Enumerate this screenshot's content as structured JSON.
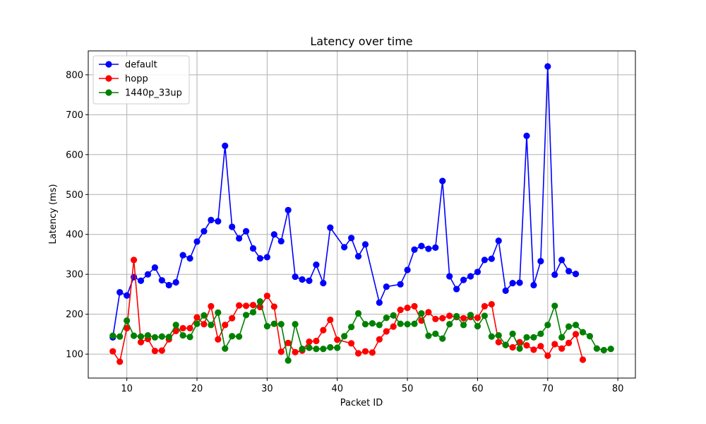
{
  "chart_data": {
    "type": "line",
    "title": "Latency over time",
    "xlabel": "Packet ID",
    "ylabel": "Latency (ms)",
    "xlim": [
      4.5,
      82.5
    ],
    "ylim": [
      40,
      860
    ],
    "xticks": [
      10,
      20,
      30,
      40,
      50,
      60,
      70,
      80
    ],
    "yticks": [
      100,
      200,
      300,
      400,
      500,
      600,
      700,
      800
    ],
    "grid": true,
    "legend_position": "top-left",
    "series": [
      {
        "name": "default",
        "color": "#0000ff",
        "x": [
          8,
          9,
          10,
          11,
          12,
          13,
          14,
          15,
          16,
          17,
          18,
          19,
          20,
          21,
          22,
          23,
          24,
          25,
          26,
          27,
          28,
          29,
          30,
          31,
          32,
          33,
          34,
          35,
          36,
          37,
          38,
          39,
          41,
          42,
          43,
          44,
          46,
          47,
          49,
          50,
          51,
          52,
          53,
          54,
          55,
          56,
          57,
          58,
          59,
          60,
          61,
          62,
          63,
          64,
          65,
          66,
          67,
          68,
          69,
          70,
          71,
          72,
          73,
          74
        ],
        "y": [
          142,
          255,
          247,
          293,
          284,
          300,
          317,
          285,
          273,
          280,
          348,
          340,
          382,
          408,
          436,
          433,
          622,
          419,
          390,
          408,
          365,
          340,
          343,
          400,
          383,
          461,
          294,
          287,
          284,
          324,
          278,
          417,
          368,
          391,
          345,
          375,
          229,
          269,
          275,
          311,
          362,
          371,
          364,
          367,
          534,
          295,
          263,
          286,
          295,
          306,
          336,
          339,
          384,
          259,
          278,
          279,
          647,
          273,
          333,
          821,
          299,
          336,
          308,
          301
        ]
      },
      {
        "name": "hopp",
        "color": "#ff0000",
        "x": [
          8,
          9,
          10,
          11,
          12,
          13,
          14,
          15,
          16,
          17,
          18,
          19,
          20,
          21,
          22,
          23,
          24,
          25,
          26,
          27,
          28,
          29,
          30,
          31,
          32,
          33,
          34,
          35,
          36,
          37,
          38,
          39,
          40,
          42,
          43,
          44,
          45,
          46,
          47,
          48,
          49,
          50,
          51,
          52,
          53,
          54,
          55,
          56,
          57,
          58,
          59,
          60,
          61,
          62,
          63,
          64,
          65,
          66,
          67,
          68,
          69,
          70,
          71,
          72,
          73,
          74,
          75
        ],
        "y": [
          107,
          81,
          165,
          336,
          130,
          138,
          108,
          109,
          137,
          158,
          165,
          165,
          192,
          175,
          220,
          137,
          173,
          190,
          222,
          221,
          223,
          218,
          246,
          219,
          106,
          128,
          105,
          109,
          131,
          133,
          160,
          186,
          136,
          127,
          102,
          107,
          104,
          137,
          157,
          169,
          211,
          216,
          220,
          184,
          205,
          188,
          190,
          196,
          193,
          190,
          193,
          191,
          220,
          225,
          130,
          123,
          117,
          130,
          122,
          111,
          120,
          96,
          125,
          114,
          128,
          150,
          86
        ]
      },
      {
        "name": "1440p_33up",
        "color": "#008000",
        "x": [
          8,
          9,
          10,
          11,
          12,
          13,
          14,
          15,
          16,
          17,
          18,
          19,
          20,
          21,
          22,
          23,
          24,
          25,
          26,
          27,
          28,
          29,
          30,
          31,
          32,
          33,
          34,
          35,
          36,
          37,
          38,
          39,
          40,
          41,
          42,
          43,
          44,
          45,
          46,
          47,
          48,
          49,
          50,
          51,
          52,
          53,
          54,
          55,
          56,
          57,
          58,
          59,
          60,
          61,
          62,
          63,
          64,
          65,
          66,
          67,
          68,
          69,
          70,
          71,
          72,
          73,
          74,
          75,
          76,
          77,
          78,
          79
        ],
        "y": [
          146,
          144,
          184,
          146,
          144,
          147,
          142,
          144,
          143,
          173,
          147,
          143,
          176,
          197,
          173,
          204,
          114,
          145,
          144,
          198,
          205,
          232,
          170,
          176,
          175,
          84,
          175,
          113,
          116,
          113,
          113,
          117,
          116,
          145,
          168,
          202,
          175,
          177,
          173,
          191,
          197,
          176,
          175,
          176,
          202,
          146,
          151,
          139,
          175,
          195,
          173,
          198,
          170,
          196,
          144,
          147,
          123,
          151,
          114,
          142,
          142,
          151,
          173,
          221,
          142,
          169,
          173,
          155,
          145,
          114,
          110,
          113
        ]
      }
    ]
  }
}
